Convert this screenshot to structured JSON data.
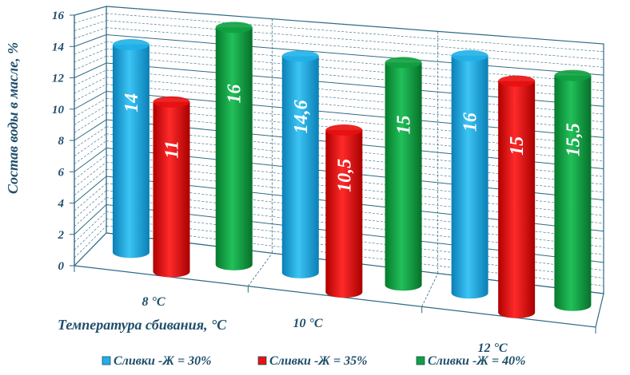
{
  "chart_data": {
    "type": "bar",
    "title": "",
    "ylabel": "Состав воды в масле, %",
    "xlabel": "Температура сбивания, °С",
    "ylim": [
      0,
      16
    ],
    "yticks": [
      "0",
      "2",
      "4",
      "6",
      "8",
      "10",
      "12",
      "14",
      "16"
    ],
    "categories": [
      "8 °С",
      "10 °С",
      "12 °С"
    ],
    "series": [
      {
        "name": "Сливки -Ж = 30%",
        "color": "#1fb0e8",
        "values": [
          14,
          14.6,
          16
        ],
        "labels": [
          "14",
          "14,6",
          "16"
        ]
      },
      {
        "name": "Сливки -Ж = 35%",
        "color": "#e81010",
        "values": [
          11,
          10.5,
          15
        ],
        "labels": [
          "11",
          "10,5",
          "15"
        ]
      },
      {
        "name": "Сливки -Ж = 40%",
        "color": "#10a040",
        "values": [
          16,
          15,
          15.5
        ],
        "labels": [
          "16",
          "15",
          "15,5"
        ]
      }
    ],
    "grid": true,
    "legend": "bottom"
  }
}
